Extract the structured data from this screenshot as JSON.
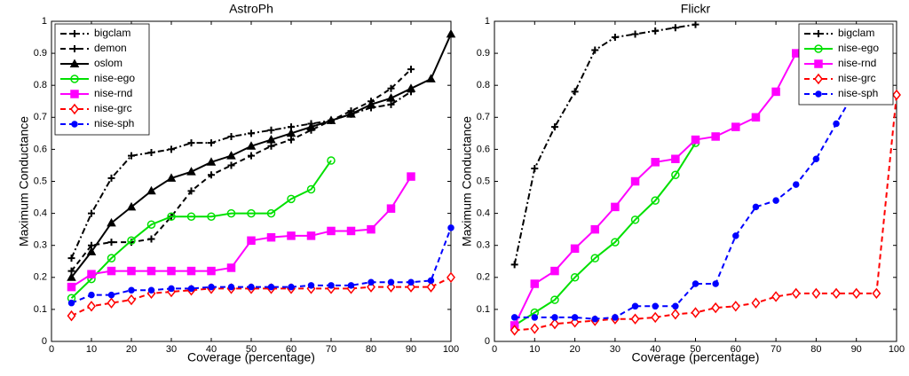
{
  "chart_data": [
    {
      "type": "line",
      "title": "AstroPh",
      "x_label": "Coverage (percentage)",
      "y_label": "Maximum Conductance",
      "xlim": [
        0,
        100
      ],
      "ylim": [
        0,
        1
      ],
      "xticks": [
        0,
        10,
        20,
        30,
        40,
        50,
        60,
        70,
        80,
        90,
        100
      ],
      "yticks": [
        0,
        0.1,
        0.2,
        0.3,
        0.4,
        0.5,
        0.6,
        0.7,
        0.8,
        0.9,
        1
      ],
      "legend": "upper left",
      "series": [
        {
          "name": "bigclam",
          "color": "#000000",
          "dash": "dashdot",
          "marker": "plus",
          "x": [
            5,
            10,
            15,
            20,
            25,
            30,
            35,
            40,
            45,
            50,
            55,
            60,
            65,
            70,
            75,
            80,
            85,
            90
          ],
          "values": [
            0.26,
            0.4,
            0.51,
            0.58,
            0.59,
            0.6,
            0.62,
            0.62,
            0.64,
            0.65,
            0.66,
            0.67,
            0.68,
            0.69,
            0.71,
            0.73,
            0.74,
            0.78
          ]
        },
        {
          "name": "demon",
          "color": "#000000",
          "dash": "dashed",
          "marker": "plus",
          "x": [
            5,
            10,
            15,
            20,
            25,
            30,
            35,
            40,
            45,
            50,
            55,
            60,
            65,
            70,
            75,
            80,
            85,
            90
          ],
          "values": [
            0.22,
            0.3,
            0.31,
            0.31,
            0.32,
            0.39,
            0.47,
            0.52,
            0.55,
            0.58,
            0.61,
            0.63,
            0.66,
            0.69,
            0.72,
            0.75,
            0.79,
            0.85
          ]
        },
        {
          "name": "oslom",
          "color": "#000000",
          "dash": "solid",
          "marker": "triangle",
          "x": [
            5,
            10,
            15,
            20,
            25,
            30,
            35,
            40,
            45,
            50,
            55,
            60,
            65,
            70,
            75,
            80,
            85,
            90,
            95,
            100
          ],
          "values": [
            0.2,
            0.28,
            0.37,
            0.42,
            0.47,
            0.51,
            0.53,
            0.56,
            0.58,
            0.61,
            0.63,
            0.65,
            0.67,
            0.69,
            0.71,
            0.74,
            0.76,
            0.79,
            0.82,
            0.96
          ]
        },
        {
          "name": "nise-ego",
          "color": "#00e000",
          "dash": "solid",
          "marker": "circle",
          "x": [
            5,
            10,
            15,
            20,
            25,
            30,
            35,
            40,
            45,
            50,
            55,
            60,
            65,
            70
          ],
          "values": [
            0.135,
            0.195,
            0.26,
            0.315,
            0.365,
            0.39,
            0.39,
            0.39,
            0.4,
            0.4,
            0.4,
            0.445,
            0.475,
            0.565
          ]
        },
        {
          "name": "nise-rnd",
          "color": "#ff00ff",
          "dash": "solid",
          "marker": "square",
          "x": [
            5,
            10,
            15,
            20,
            25,
            30,
            35,
            40,
            45,
            50,
            55,
            60,
            65,
            70,
            75,
            80,
            85,
            90
          ],
          "values": [
            0.17,
            0.21,
            0.22,
            0.22,
            0.22,
            0.22,
            0.22,
            0.22,
            0.23,
            0.315,
            0.325,
            0.33,
            0.33,
            0.345,
            0.345,
            0.35,
            0.415,
            0.515
          ]
        },
        {
          "name": "nise-grc",
          "color": "#ff0000",
          "dash": "dashed",
          "marker": "diamond",
          "x": [
            5,
            10,
            15,
            20,
            25,
            30,
            35,
            40,
            45,
            50,
            55,
            60,
            65,
            70,
            75,
            80,
            85,
            90,
            95,
            100
          ],
          "values": [
            0.08,
            0.11,
            0.12,
            0.13,
            0.15,
            0.155,
            0.16,
            0.165,
            0.165,
            0.165,
            0.165,
            0.165,
            0.165,
            0.165,
            0.165,
            0.17,
            0.17,
            0.17,
            0.17,
            0.2
          ]
        },
        {
          "name": "nise-sph",
          "color": "#0000ff",
          "dash": "dashed",
          "marker": "dot",
          "x": [
            5,
            10,
            15,
            20,
            25,
            30,
            35,
            40,
            45,
            50,
            55,
            60,
            65,
            70,
            75,
            80,
            85,
            90,
            95,
            100
          ],
          "values": [
            0.12,
            0.145,
            0.145,
            0.16,
            0.16,
            0.165,
            0.165,
            0.17,
            0.17,
            0.17,
            0.17,
            0.17,
            0.175,
            0.175,
            0.175,
            0.185,
            0.185,
            0.185,
            0.19,
            0.355
          ]
        }
      ]
    },
    {
      "type": "line",
      "title": "Flickr",
      "x_label": "Coverage (percentage)",
      "y_label": "Maximum Conductance",
      "xlim": [
        0,
        100
      ],
      "ylim": [
        0,
        1
      ],
      "xticks": [
        0,
        10,
        20,
        30,
        40,
        50,
        60,
        70,
        80,
        90,
        100
      ],
      "yticks": [
        0,
        0.1,
        0.2,
        0.3,
        0.4,
        0.5,
        0.6,
        0.7,
        0.8,
        0.9,
        1
      ],
      "legend": "upper right",
      "series": [
        {
          "name": "bigclam",
          "color": "#000000",
          "dash": "dashdot",
          "marker": "plus",
          "x": [
            5,
            10,
            15,
            20,
            25,
            30,
            35,
            40,
            45,
            50
          ],
          "values": [
            0.24,
            0.54,
            0.67,
            0.78,
            0.91,
            0.95,
            0.96,
            0.97,
            0.98,
            0.99
          ]
        },
        {
          "name": "nise-ego",
          "color": "#00e000",
          "dash": "solid",
          "marker": "circle",
          "x": [
            5,
            10,
            15,
            20,
            25,
            30,
            35,
            40,
            45,
            50
          ],
          "values": [
            0.05,
            0.09,
            0.13,
            0.2,
            0.26,
            0.31,
            0.38,
            0.44,
            0.52,
            0.62
          ]
        },
        {
          "name": "nise-rnd",
          "color": "#ff00ff",
          "dash": "solid",
          "marker": "square",
          "x": [
            5,
            10,
            15,
            20,
            25,
            30,
            35,
            40,
            45,
            50,
            55,
            60,
            65,
            70,
            75
          ],
          "values": [
            0.05,
            0.18,
            0.22,
            0.29,
            0.35,
            0.42,
            0.5,
            0.56,
            0.57,
            0.63,
            0.64,
            0.67,
            0.7,
            0.78,
            0.9
          ]
        },
        {
          "name": "nise-grc",
          "color": "#ff0000",
          "dash": "dashed",
          "marker": "diamond",
          "x": [
            5,
            10,
            15,
            20,
            25,
            30,
            35,
            40,
            45,
            50,
            55,
            60,
            65,
            70,
            75,
            80,
            85,
            90,
            95,
            100
          ],
          "values": [
            0.035,
            0.04,
            0.055,
            0.06,
            0.065,
            0.07,
            0.07,
            0.075,
            0.085,
            0.09,
            0.105,
            0.11,
            0.12,
            0.14,
            0.15,
            0.15,
            0.15,
            0.15,
            0.15,
            0.77
          ]
        },
        {
          "name": "nise-sph",
          "color": "#0000ff",
          "dash": "dashed",
          "marker": "dot",
          "x": [
            5,
            10,
            15,
            20,
            25,
            30,
            35,
            40,
            45,
            50,
            55,
            60,
            65,
            70,
            75,
            80,
            85,
            90
          ],
          "values": [
            0.075,
            0.075,
            0.075,
            0.075,
            0.07,
            0.075,
            0.11,
            0.11,
            0.11,
            0.18,
            0.18,
            0.33,
            0.42,
            0.44,
            0.49,
            0.57,
            0.68,
            0.79
          ]
        }
      ]
    }
  ]
}
